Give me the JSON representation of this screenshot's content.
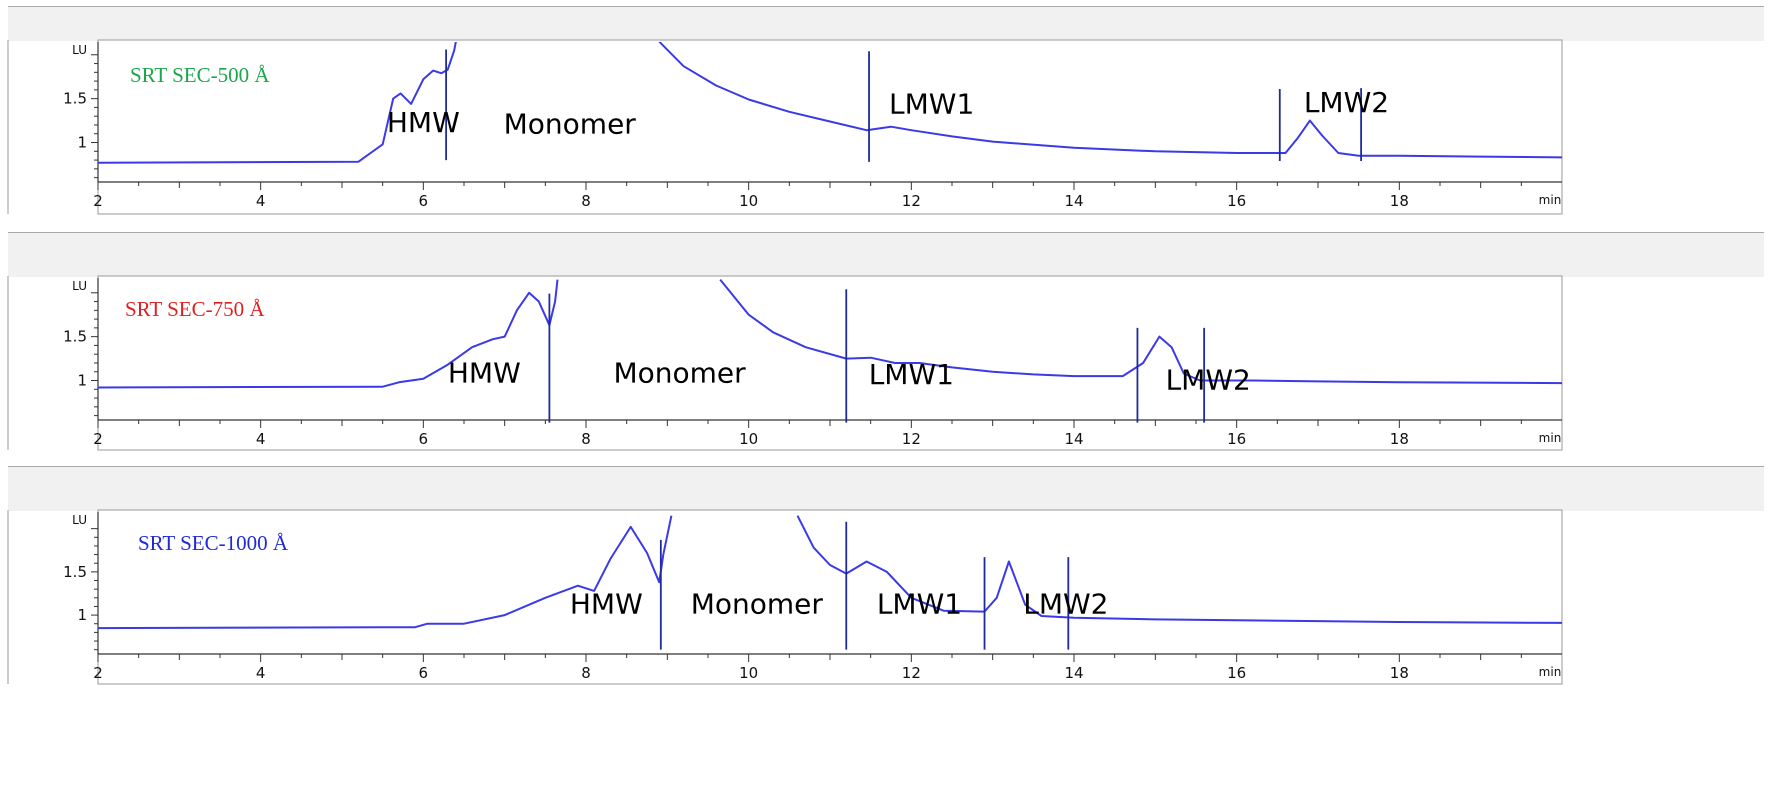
{
  "chart_data": [
    {
      "type": "line",
      "title": "SRT SEC-500 Å",
      "title_color": "#1aa64a",
      "y_unit": "LU",
      "x_unit": "min",
      "xlim": [
        2,
        20
      ],
      "ylim": [
        0.55,
        2.1
      ],
      "x_ticks": [
        "2",
        "4",
        "6",
        "8",
        "10",
        "12",
        "14",
        "16",
        "18"
      ],
      "y_ticks": [
        "1.5",
        "1"
      ],
      "line_color": "#3a3ae8",
      "marker_color": "#1f2a9e",
      "series": [
        {
          "x": [
            2,
            5.2,
            5.5,
            5.63,
            5.72,
            5.85,
            6.0,
            6.12,
            6.22,
            6.3,
            6.38,
            6.4
          ],
          "y": [
            0.77,
            0.78,
            0.98,
            1.5,
            1.56,
            1.44,
            1.72,
            1.82,
            1.79,
            1.83,
            2.05,
            2.15
          ],
          "clip_top": true
        },
        {
          "x": [
            8.9,
            9.2,
            9.6,
            10.0,
            10.5,
            11.0,
            11.45,
            11.75,
            12.0,
            12.5,
            13.0,
            14.0,
            15.0,
            16.0,
            16.6,
            16.75,
            16.9,
            17.05,
            17.25,
            17.5,
            18.0,
            19.0,
            20.0
          ],
          "y": [
            2.15,
            1.87,
            1.65,
            1.49,
            1.35,
            1.24,
            1.14,
            1.18,
            1.14,
            1.07,
            1.01,
            0.94,
            0.9,
            0.88,
            0.88,
            1.05,
            1.25,
            1.08,
            0.88,
            0.85,
            0.85,
            0.84,
            0.83
          ],
          "clip_top": true
        }
      ],
      "markers": [
        6.28,
        11.48,
        16.53,
        17.53
      ],
      "markers_partial": [
        {
          "x": 6.28,
          "top": 2.06,
          "bottom": 0.8
        },
        {
          "x": 11.48,
          "top": 2.04,
          "bottom": 0.78
        },
        {
          "x": 16.53,
          "top": 1.61,
          "bottom": 0.79
        },
        {
          "x": 17.53,
          "top": 1.62,
          "bottom": 0.79
        }
      ],
      "labels": [
        {
          "text": "HMW",
          "x": 6.0,
          "y": 1.12
        },
        {
          "text": "Monomer",
          "x": 7.8,
          "y": 1.1
        },
        {
          "text": "LMW1",
          "x": 12.25,
          "y": 1.33
        },
        {
          "text": "LMW2",
          "x": 17.35,
          "y": 1.35
        }
      ]
    },
    {
      "type": "line",
      "title": "SRT SEC-750 Å",
      "title_color": "#e02020",
      "y_unit": "LU",
      "x_unit": "min",
      "xlim": [
        2,
        20
      ],
      "ylim": [
        0.55,
        2.1
      ],
      "x_ticks": [
        "2",
        "4",
        "6",
        "8",
        "10",
        "12",
        "14",
        "16",
        "18"
      ],
      "y_ticks": [
        "1.5",
        "1"
      ],
      "line_color": "#3a3ae8",
      "marker_color": "#1f2a9e",
      "series": [
        {
          "x": [
            2,
            5.5,
            5.7,
            6.0,
            6.3,
            6.6,
            6.85,
            7.0,
            7.15,
            7.3,
            7.42,
            7.55,
            7.62,
            7.65
          ],
          "y": [
            0.92,
            0.93,
            0.98,
            1.02,
            1.18,
            1.38,
            1.47,
            1.5,
            1.8,
            2.0,
            1.9,
            1.63,
            1.9,
            2.15
          ],
          "clip_top": true
        },
        {
          "x": [
            9.65,
            10.0,
            10.3,
            10.7,
            11.2,
            11.5,
            11.8,
            12.1,
            12.5,
            13.0,
            13.5,
            14.0,
            14.6,
            14.85,
            15.05,
            15.2,
            15.35,
            15.55,
            15.8,
            16.2,
            17.0,
            18.0,
            20.0
          ],
          "y": [
            2.15,
            1.75,
            1.55,
            1.38,
            1.25,
            1.26,
            1.2,
            1.2,
            1.15,
            1.1,
            1.07,
            1.05,
            1.05,
            1.2,
            1.5,
            1.38,
            1.08,
            1.0,
            1.0,
            1.0,
            0.99,
            0.98,
            0.97
          ],
          "clip_top": true
        }
      ],
      "markers_partial": [
        {
          "x": 7.55,
          "top": 1.99,
          "bottom": 0.52
        },
        {
          "x": 11.2,
          "top": 2.04,
          "bottom": 0.52
        },
        {
          "x": 14.78,
          "top": 1.6,
          "bottom": 0.52
        },
        {
          "x": 15.6,
          "top": 1.6,
          "bottom": 0.52
        }
      ],
      "labels": [
        {
          "text": "HMW",
          "x": 6.75,
          "y": 0.98
        },
        {
          "text": "Monomer",
          "x": 9.15,
          "y": 0.98
        },
        {
          "text": "LMW1",
          "x": 12.0,
          "y": 0.96
        },
        {
          "text": "LMW2",
          "x": 15.65,
          "y": 0.9
        }
      ]
    },
    {
      "type": "line",
      "title": "SRT SEC-1000 Å",
      "title_color": "#1e2ad6",
      "y_unit": "LU",
      "x_unit": "min",
      "xlim": [
        2,
        20
      ],
      "ylim": [
        0.55,
        2.1
      ],
      "x_ticks": [
        "2",
        "4",
        "6",
        "8",
        "10",
        "12",
        "14",
        "16",
        "18"
      ],
      "y_ticks": [
        "1.5",
        "1"
      ],
      "line_color": "#3a3ae8",
      "marker_color": "#1f2a9e",
      "series": [
        {
          "x": [
            2,
            5.9,
            6.05,
            6.5,
            7.0,
            7.5,
            7.9,
            8.1,
            8.3,
            8.55,
            8.75,
            8.9,
            8.95,
            9.05
          ],
          "y": [
            0.85,
            0.86,
            0.9,
            0.9,
            1.0,
            1.2,
            1.34,
            1.28,
            1.65,
            2.02,
            1.72,
            1.38,
            1.7,
            2.15
          ],
          "clip_top": true
        },
        {
          "x": [
            10.6,
            10.8,
            11.0,
            11.2,
            11.45,
            11.7,
            12.0,
            12.4,
            12.9,
            13.05,
            13.2,
            13.4,
            13.6,
            14.0,
            15.0,
            16.0,
            17.0,
            18.0,
            20.0
          ],
          "y": [
            2.15,
            1.78,
            1.58,
            1.48,
            1.62,
            1.5,
            1.2,
            1.05,
            1.04,
            1.2,
            1.62,
            1.12,
            0.99,
            0.97,
            0.95,
            0.94,
            0.93,
            0.92,
            0.91
          ],
          "clip_top": true
        }
      ],
      "markers_partial": [
        {
          "x": 8.92,
          "top": 1.87,
          "bottom": 0.6
        },
        {
          "x": 11.2,
          "top": 2.08,
          "bottom": 0.6
        },
        {
          "x": 12.9,
          "top": 1.67,
          "bottom": 0.6
        },
        {
          "x": 13.93,
          "top": 1.67,
          "bottom": 0.6
        }
      ],
      "labels": [
        {
          "text": "HMW",
          "x": 8.25,
          "y": 1.02
        },
        {
          "text": "Monomer",
          "x": 10.1,
          "y": 1.02
        },
        {
          "text": "LMW1",
          "x": 12.1,
          "y": 1.02
        },
        {
          "text": "LMW2",
          "x": 13.9,
          "y": 1.02
        }
      ]
    }
  ]
}
